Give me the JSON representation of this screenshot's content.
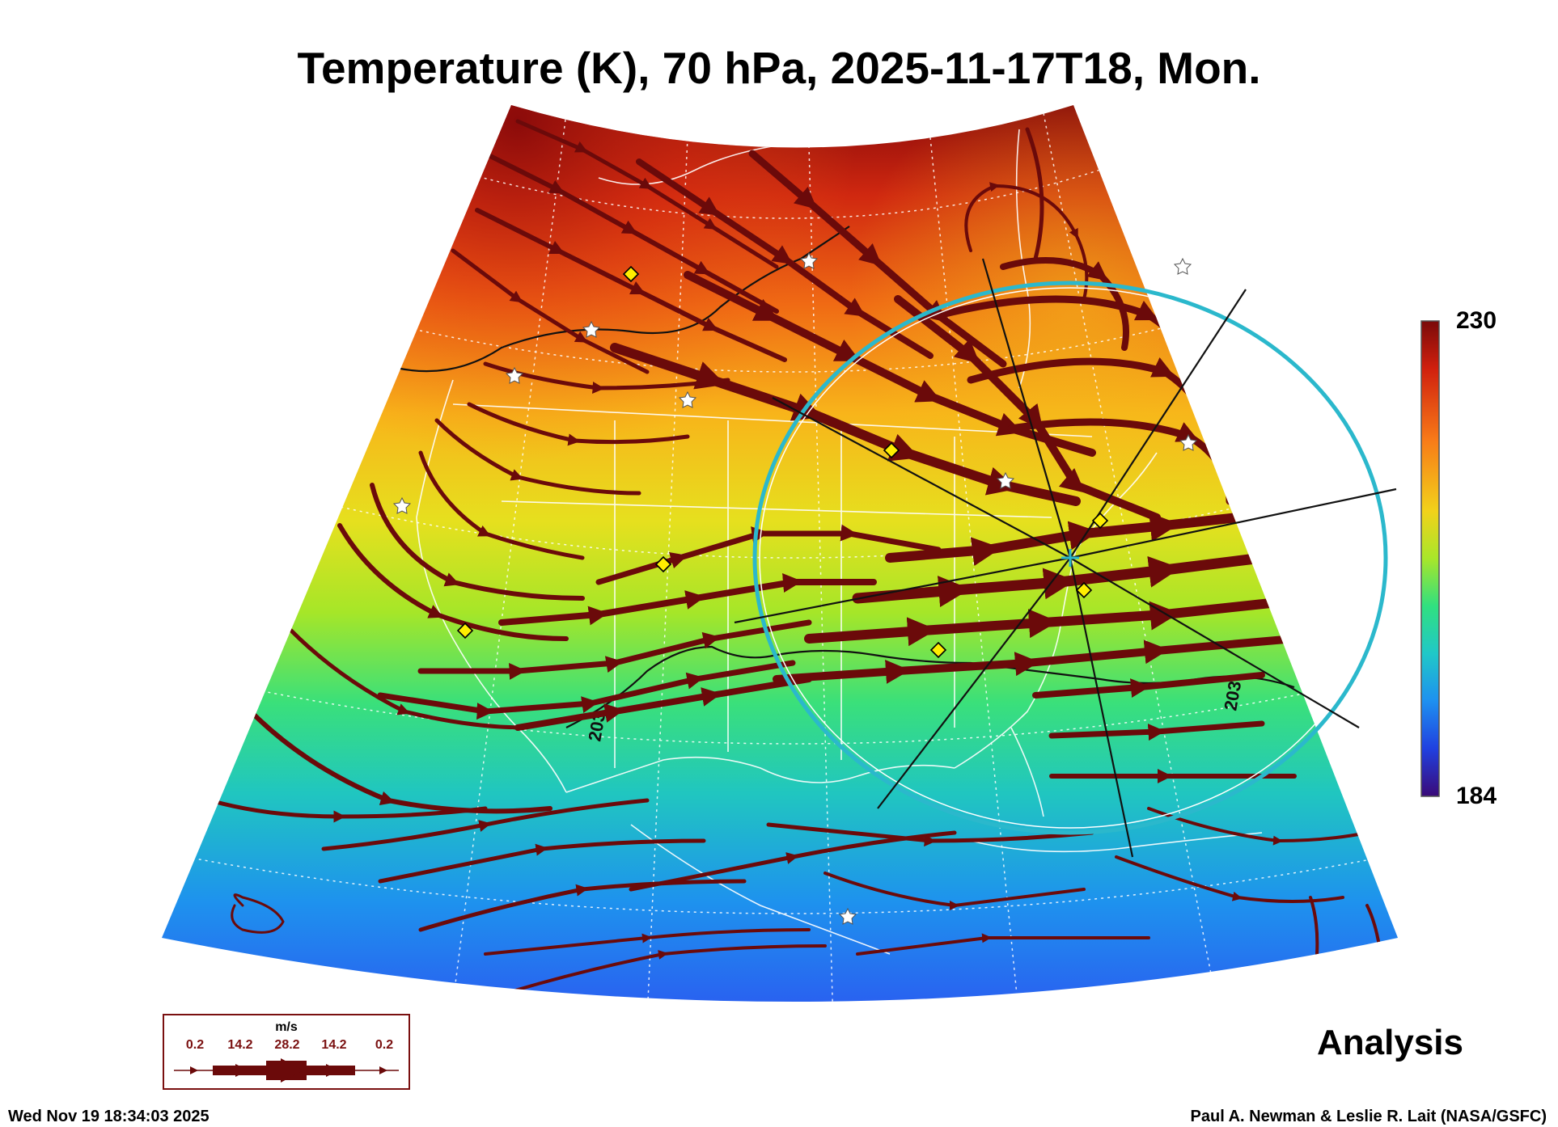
{
  "title": "Temperature (K), 70 hPa, 2025-11-17T18, Mon.",
  "colorbar": {
    "max": "230",
    "min": "184"
  },
  "contour_labels": [
    "203",
    "203"
  ],
  "wind_legend": {
    "units": "m/s",
    "values": [
      "0.2",
      "14.2",
      "28.2",
      "14.2",
      "0.2"
    ]
  },
  "analysis_label": "Analysis",
  "footer": {
    "date": "Wed Nov 19 18:34:03 2025",
    "credit": "Paul A. Newman & Leslie R. Lait (NASA/GSFC)"
  },
  "colors": {
    "streamline": "#6b0a0a",
    "sun_circle": "#2bb8cc",
    "station_diamond": "#ffee00",
    "colormap": [
      "#3a0a78",
      "#1e40e6",
      "#1e90f0",
      "#20c8c8",
      "#30e080",
      "#9ae62a",
      "#e8e21a",
      "#f8a51a",
      "#f0501a",
      "#c0180e",
      "#7a0a0a"
    ]
  },
  "markers": {
    "diamond_count": 7,
    "star_count": 9,
    "diamond_meaning": "yellow-diamond-icon",
    "star_meaning": "white-star-icon"
  }
}
